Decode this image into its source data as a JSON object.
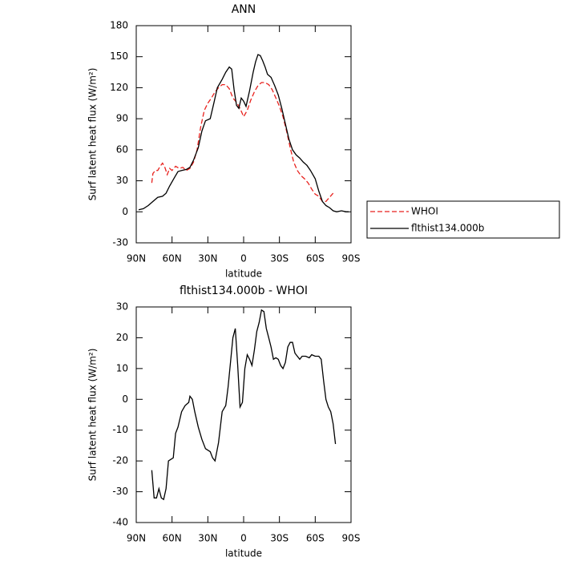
{
  "chart_data": [
    {
      "type": "line",
      "title": "ANN",
      "xlabel": "latitude",
      "ylabel": "Surf latent heat flux (W/m²)",
      "xlim": [
        90,
        -90
      ],
      "xticks": [
        {
          "value": 90,
          "label": "90N"
        },
        {
          "value": 60,
          "label": "60N"
        },
        {
          "value": 30,
          "label": "30N"
        },
        0,
        {
          "value": -30,
          "label": "30S"
        },
        {
          "value": -60,
          "label": "60S"
        },
        {
          "value": -90,
          "label": "90S"
        }
      ],
      "ylim": [
        -30,
        180
      ],
      "yticks": [
        -30,
        0,
        30,
        60,
        90,
        120,
        150,
        180
      ],
      "legend": "right",
      "series": [
        {
          "name": "WHOI",
          "color": "#e8211d",
          "linestyle": "dashed",
          "x": [
            77,
            76,
            74,
            72,
            70,
            68,
            66,
            64,
            62,
            60,
            57,
            54,
            51,
            48,
            45,
            42,
            39,
            36,
            33,
            30,
            27,
            24,
            21,
            18,
            15,
            12,
            9,
            6,
            3,
            0,
            -3,
            -6,
            -9,
            -12,
            -15,
            -18,
            -21,
            -24,
            -27,
            -30,
            -33,
            -36,
            -39,
            -42,
            -45,
            -48,
            -51,
            -54,
            -57,
            -60,
            -63,
            -66,
            -69,
            -72,
            -75
          ],
          "values": [
            28,
            37,
            40,
            40,
            44,
            47,
            43,
            36,
            42,
            40,
            44,
            42,
            43,
            40,
            42,
            48,
            60,
            82,
            98,
            105,
            110,
            116,
            120,
            123,
            123,
            119,
            110,
            106,
            100,
            92,
            98,
            108,
            116,
            122,
            125,
            125,
            123,
            118,
            110,
            102,
            92,
            78,
            62,
            48,
            40,
            35,
            32,
            28,
            22,
            17,
            15,
            10,
            10,
            14,
            18
          ]
        },
        {
          "name": "flthist134.000b",
          "color": "#000000",
          "linestyle": "solid",
          "x": [
            88,
            84,
            80,
            76,
            72,
            68,
            65,
            62,
            58,
            55,
            52,
            48,
            45,
            42,
            38,
            35,
            32,
            28,
            25,
            22,
            18,
            15,
            12,
            10,
            8,
            6,
            4,
            2,
            0,
            -2,
            -5,
            -8,
            -10,
            -12,
            -14,
            -16,
            -18,
            -20,
            -23,
            -26,
            -29,
            -32,
            -35,
            -38,
            -41,
            -44,
            -47,
            -50,
            -53,
            -56,
            -60,
            -63,
            -66,
            -69,
            -72,
            -75,
            -78,
            -82,
            -86,
            -88
          ],
          "values": [
            2,
            3,
            6,
            10,
            14,
            15,
            18,
            25,
            33,
            39,
            40,
            41,
            43,
            50,
            62,
            78,
            88,
            90,
            105,
            120,
            128,
            135,
            140,
            138,
            118,
            103,
            100,
            110,
            107,
            102,
            117,
            135,
            145,
            152,
            151,
            146,
            140,
            133,
            130,
            122,
            113,
            100,
            85,
            70,
            60,
            55,
            52,
            48,
            45,
            40,
            32,
            20,
            10,
            6,
            4,
            1,
            0,
            1,
            0,
            0
          ]
        }
      ]
    },
    {
      "type": "line",
      "title": "flthist134.000b - WHOI",
      "xlabel": "latitude",
      "ylabel": "Surf latent heat flux (W/m²)",
      "xlim": [
        90,
        -90
      ],
      "xticks": [
        {
          "value": 90,
          "label": "90N"
        },
        {
          "value": 60,
          "label": "60N"
        },
        {
          "value": 30,
          "label": "30N"
        },
        0,
        {
          "value": -30,
          "label": "30S"
        },
        {
          "value": -60,
          "label": "60S"
        },
        {
          "value": -90,
          "label": "90S"
        }
      ],
      "ylim": [
        -40,
        30
      ],
      "yticks": [
        -40,
        -30,
        -20,
        -10,
        0,
        10,
        20,
        30
      ],
      "series": [
        {
          "color": "#000000",
          "linestyle": "solid",
          "x": [
            77,
            75,
            73,
            71,
            69,
            67,
            65,
            63,
            61,
            59,
            57,
            55,
            52,
            49,
            46,
            45,
            43,
            41,
            38,
            35,
            32,
            30,
            28,
            26,
            24,
            21,
            18,
            15,
            13,
            11,
            9,
            7,
            5,
            3,
            1,
            -1,
            -3,
            -5,
            -7,
            -9,
            -11,
            -13,
            -15,
            -17,
            -19,
            -21,
            -23,
            -25,
            -27,
            -29,
            -31,
            -33,
            -35,
            -37,
            -39,
            -41,
            -43,
            -45,
            -47,
            -49,
            -52,
            -55,
            -57,
            -60,
            -63,
            -65,
            -67,
            -69,
            -71,
            -73,
            -75,
            -77
          ],
          "values": [
            -23,
            -32,
            -32,
            -29,
            -32,
            -32.5,
            -29,
            -20,
            -19.5,
            -19,
            -11,
            -9,
            -4,
            -2,
            -1,
            1,
            0,
            -4,
            -9,
            -13,
            -16,
            -16.5,
            -17,
            -19,
            -20,
            -14,
            -4,
            -2,
            4,
            12,
            20,
            23,
            11,
            -2.5,
            -1,
            10,
            14.5,
            13,
            11,
            16,
            22,
            25,
            29,
            28.5,
            23,
            20,
            17,
            13,
            13.5,
            13,
            11,
            10,
            12,
            17,
            18.5,
            18.5,
            15,
            14,
            13,
            14,
            14,
            13.5,
            14.5,
            14,
            14,
            13,
            6,
            0,
            -2.5,
            -4,
            -8,
            -14.5
          ]
        }
      ]
    }
  ]
}
